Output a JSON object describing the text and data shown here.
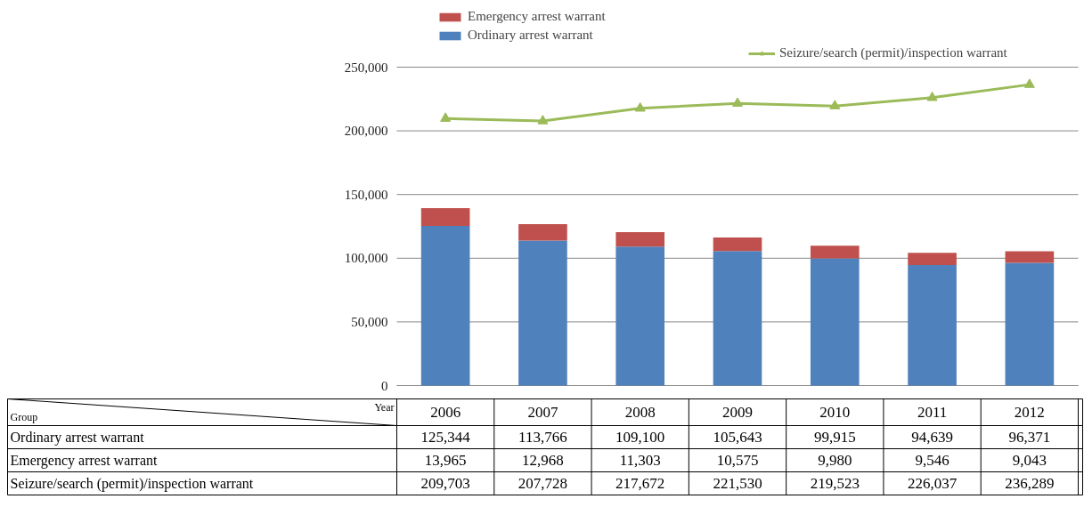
{
  "chart_data": {
    "type": "bar",
    "stacked": true,
    "categories": [
      "2006",
      "2007",
      "2008",
      "2009",
      "2010",
      "2011",
      "2012"
    ],
    "series": [
      {
        "name": "Ordinary arrest warrant",
        "color": "#4f81bd",
        "values": [
          125344,
          113766,
          109100,
          105643,
          99915,
          94639,
          96371
        ],
        "value_labels": [
          "125,344",
          "113,766",
          "109,100",
          "105,643",
          "99,915",
          "94,639",
          "96,371"
        ]
      },
      {
        "name": "Emergency arrest warrant",
        "color": "#c0504d",
        "values": [
          13965,
          12968,
          11303,
          10575,
          9980,
          9546,
          9043
        ],
        "value_labels": [
          "13,965",
          "12,968",
          "11,303",
          "10,575",
          "9,980",
          "9,546",
          "9,043"
        ]
      },
      {
        "name": "Seizure/search (permit)/inspection warrant",
        "type": "line",
        "color": "#9bbb59",
        "marker": "triangle",
        "values": [
          209703,
          207728,
          217672,
          221530,
          219523,
          226037,
          236289
        ],
        "value_labels": [
          "209,703",
          "207,728",
          "217,672",
          "221,530",
          "219,523",
          "226,037",
          "236,289"
        ]
      }
    ],
    "ylim": [
      0,
      250000
    ],
    "yticks": [
      0,
      {
        "value": 50000,
        "label": "50,000"
      },
      {
        "value": 100000,
        "label": "100,000"
      },
      {
        "value": 150000,
        "label": "150,000"
      },
      {
        "value": 200000,
        "label": "200,000"
      },
      {
        "value": 250000,
        "label": "250,000"
      }
    ],
    "grid": "y",
    "legend": "top",
    "annotations": [
      "Group",
      "Year"
    ]
  }
}
